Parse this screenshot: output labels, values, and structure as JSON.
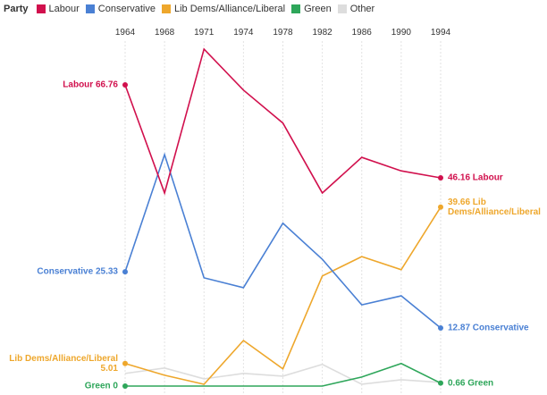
{
  "chart_data": {
    "type": "line",
    "legend_title": "Party",
    "categories": [
      "1964",
      "1968",
      "1971",
      "1974",
      "1978",
      "1982",
      "1986",
      "1990",
      "1994"
    ],
    "ylim": [
      0,
      75
    ],
    "grid": true,
    "series": [
      {
        "name": "Labour",
        "color": "#d1104d",
        "values": [
          66.76,
          42.8,
          74.7,
          65.6,
          58.3,
          42.8,
          50.7,
          47.7,
          46.16
        ],
        "value_labels": [
          "Labour 66.76",
          null,
          null,
          null,
          null,
          null,
          null,
          null,
          "46.16 Labour"
        ]
      },
      {
        "name": "Conservative",
        "color": "#4a80d4",
        "values": [
          25.33,
          51.3,
          24.0,
          21.8,
          36.1,
          28.1,
          18.0,
          20.0,
          12.87
        ],
        "value_labels": [
          "Conservative 25.33",
          null,
          null,
          null,
          null,
          null,
          null,
          null,
          "12.87 Conservative"
        ]
      },
      {
        "name": "Lib Dems/Alliance/Liberal",
        "color": "#eea72c",
        "values": [
          5.01,
          2.4,
          0.4,
          10.1,
          3.8,
          24.4,
          28.7,
          25.8,
          39.66
        ],
        "value_labels": [
          "Lib Dems/Alliance/Liberal 5.01",
          null,
          null,
          null,
          null,
          null,
          null,
          null,
          "39.66 Lib Dems/Alliance/Liberal"
        ]
      },
      {
        "name": "Green",
        "color": "#2ea65a",
        "values": [
          0,
          0,
          0,
          0,
          0,
          0,
          2.0,
          5.0,
          0.66
        ],
        "value_labels": [
          "Green 0",
          null,
          null,
          null,
          null,
          null,
          null,
          null,
          "0.66 Green"
        ]
      },
      {
        "name": "Other",
        "color": "#dddddd",
        "values": [
          2.8,
          4.0,
          1.6,
          2.8,
          2.2,
          4.8,
          0.4,
          1.4,
          0.8
        ]
      }
    ]
  }
}
